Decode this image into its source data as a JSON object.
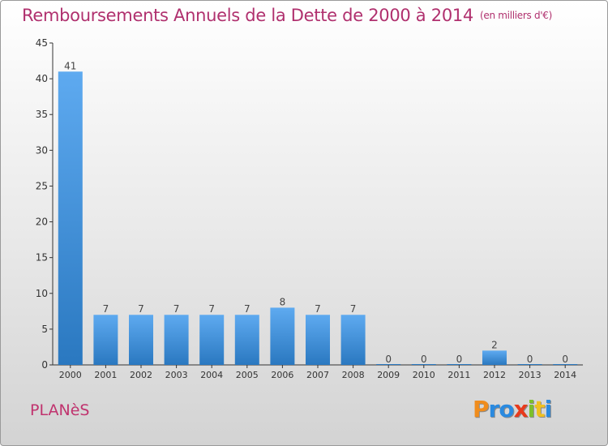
{
  "header": {
    "title": "Remboursements Annuels de la Dette de 2000 à 2014",
    "subtitle": "(en milliers d'€)"
  },
  "footer": {
    "commune": "PLANèS",
    "logo_text": "Proxiti"
  },
  "colors": {
    "title": "#b0306e",
    "bar_top": "#5eaaf0",
    "bar_bottom": "#2a78c0",
    "logo": [
      "#f08c1c",
      "#2a8ae0",
      "#2a8ae0",
      "#e83a1c",
      "#7cc02a",
      "#f0c020",
      "#2a8ae0"
    ]
  },
  "chart_data": {
    "type": "bar",
    "categories": [
      "2000",
      "2001",
      "2002",
      "2003",
      "2004",
      "2005",
      "2006",
      "2007",
      "2008",
      "2009",
      "2010",
      "2011",
      "2012",
      "2013",
      "2014"
    ],
    "values": [
      41,
      7,
      7,
      7,
      7,
      7,
      8,
      7,
      7,
      0,
      0,
      0,
      2,
      0,
      0
    ],
    "title": "Remboursements Annuels de la Dette de 2000 à 2014",
    "ylim": [
      0,
      45
    ],
    "yticks": [
      0,
      5,
      10,
      15,
      20,
      25,
      30,
      35,
      40,
      45
    ],
    "grid": false
  }
}
